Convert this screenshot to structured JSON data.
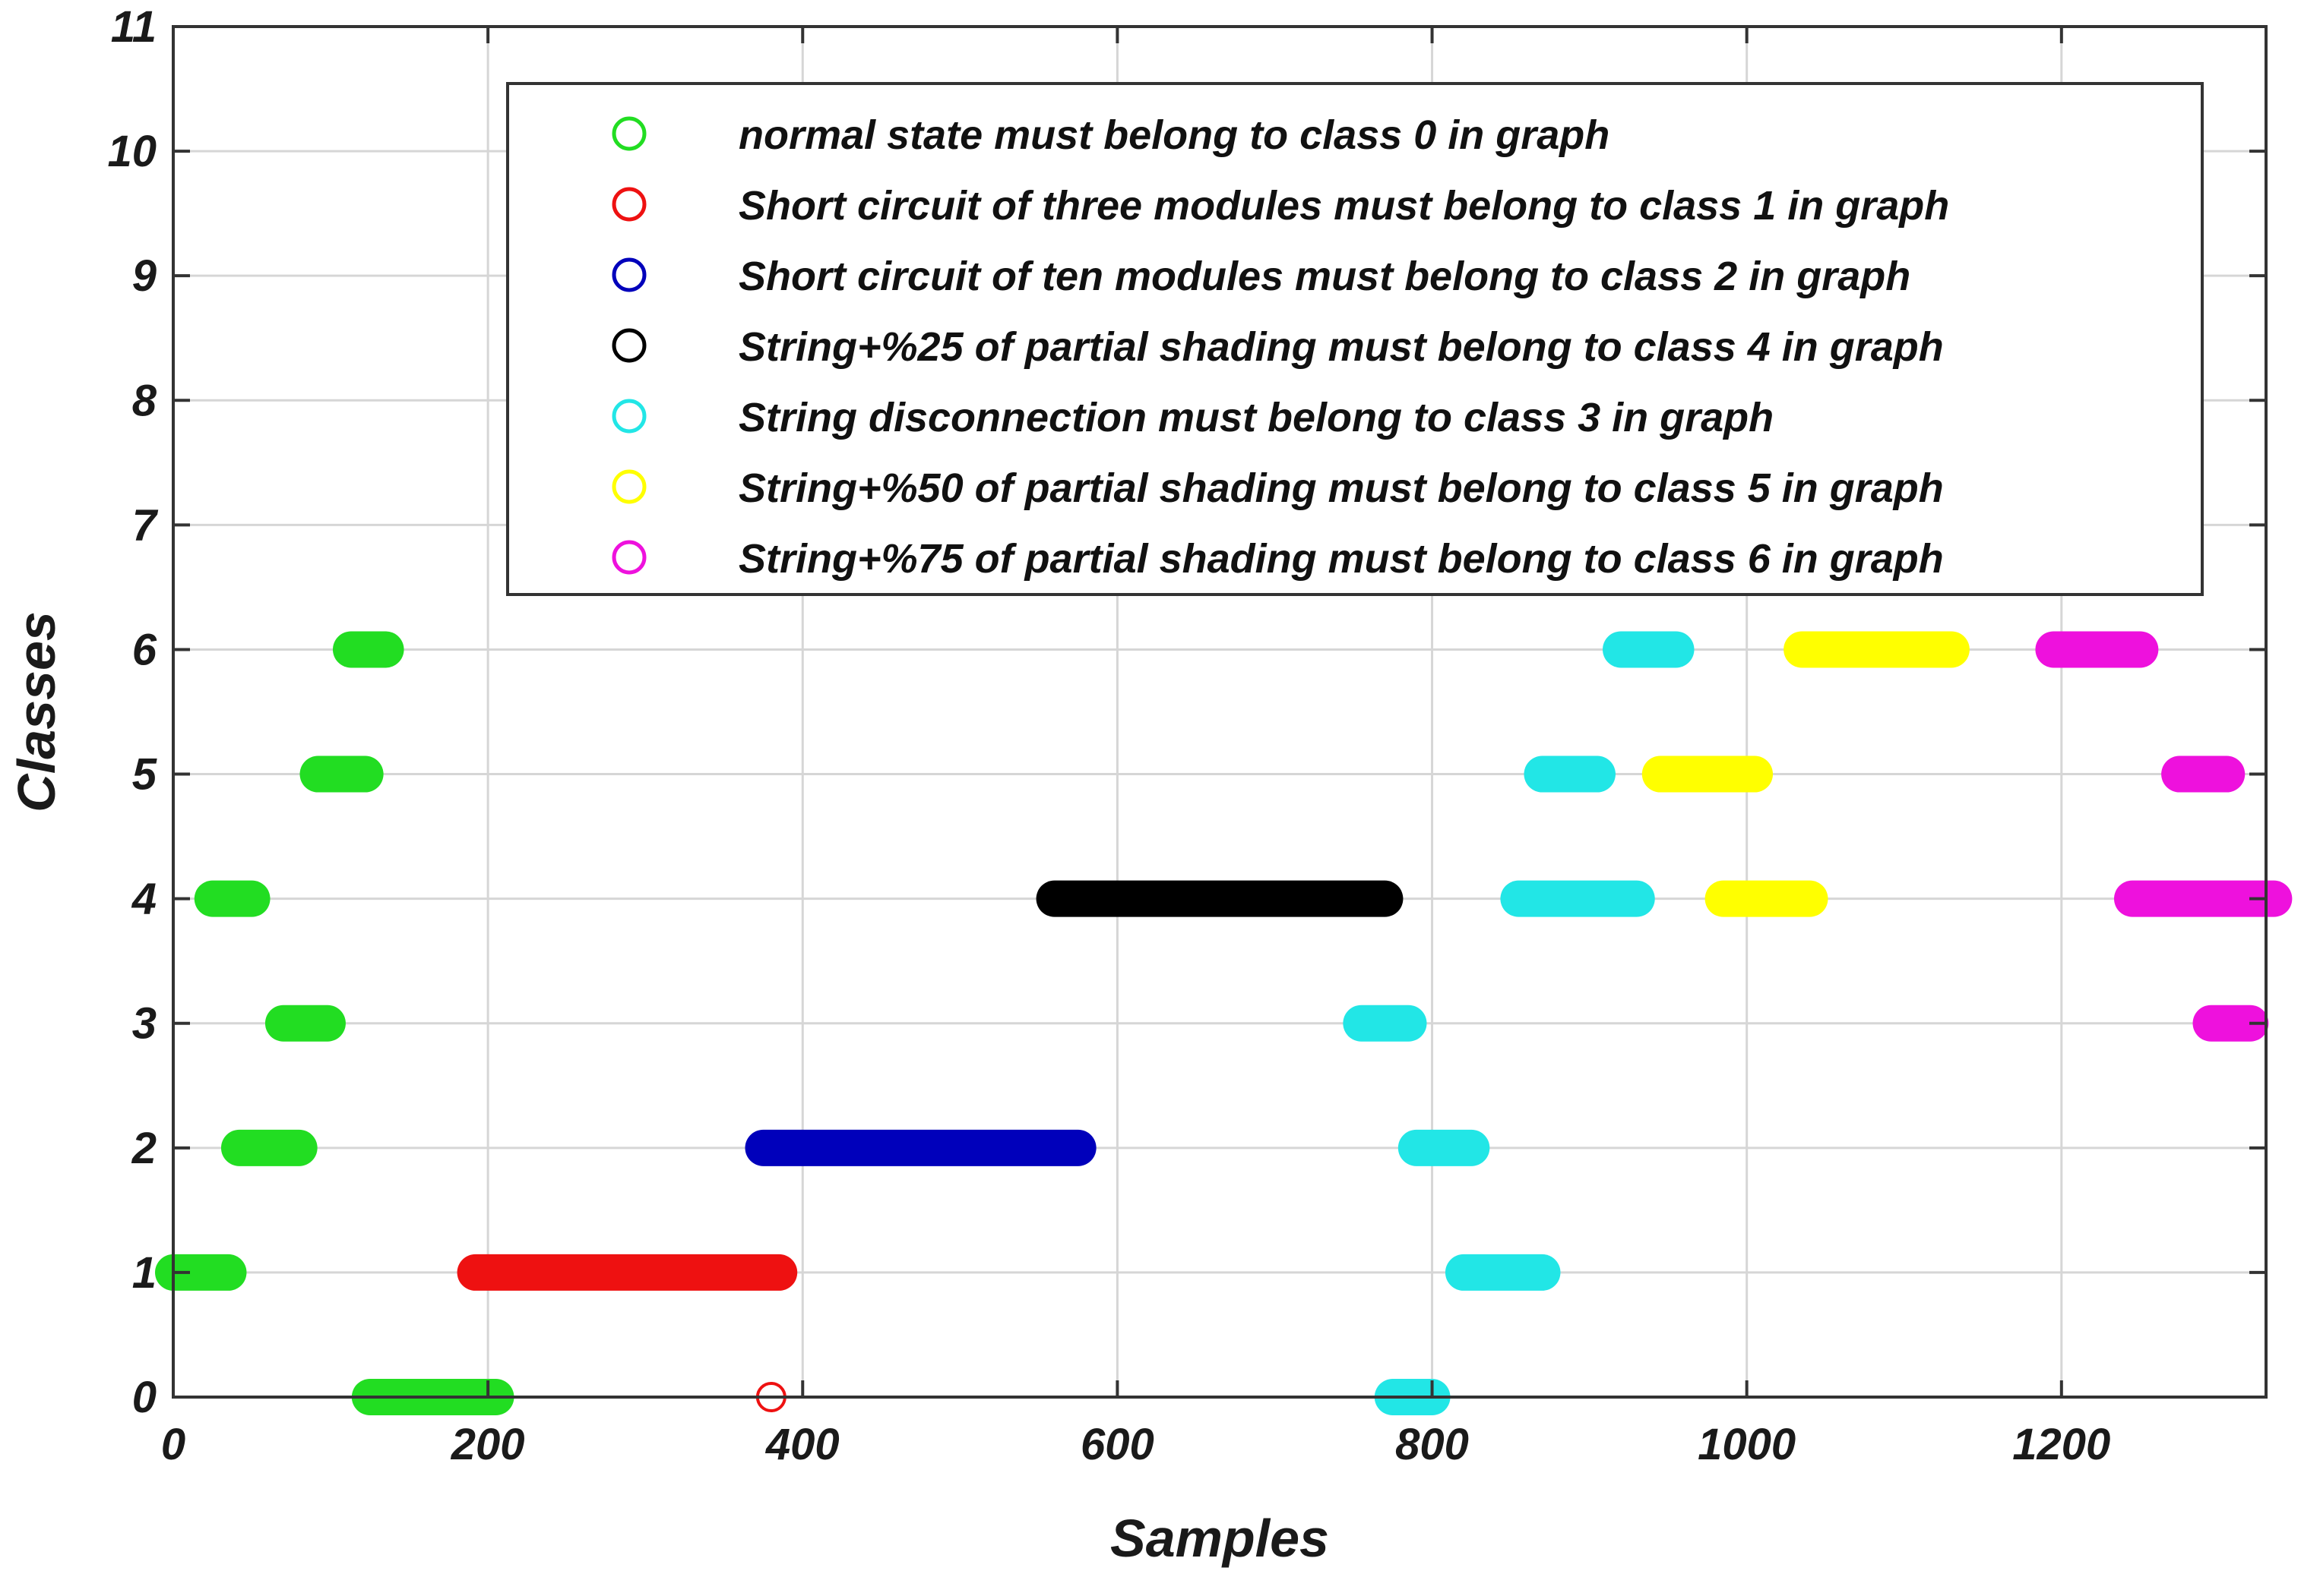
{
  "chart_data": {
    "type": "scatter",
    "xlabel": "Samples",
    "ylabel": "Classes",
    "xlim": [
      0,
      1330
    ],
    "ylim": [
      0,
      11
    ],
    "xticks": [
      0,
      200,
      400,
      600,
      800,
      1000,
      1200
    ],
    "yticks": [
      0,
      1,
      2,
      3,
      4,
      5,
      6,
      7,
      8,
      9,
      10,
      11
    ],
    "grid": true,
    "legend_position": "top-right",
    "series": [
      {
        "name": "normal state must belong to class 0 in graph",
        "color": "#22dd22",
        "segments": [
          {
            "y": 1,
            "x_start": 0,
            "x_end": 35
          },
          {
            "y": 4,
            "x_start": 25,
            "x_end": 50
          },
          {
            "y": 2,
            "x_start": 42,
            "x_end": 80
          },
          {
            "y": 3,
            "x_start": 70,
            "x_end": 98
          },
          {
            "y": 5,
            "x_start": 92,
            "x_end": 122
          },
          {
            "y": 6,
            "x_start": 113,
            "x_end": 135
          },
          {
            "y": 0,
            "x_start": 125,
            "x_end": 205
          }
        ]
      },
      {
        "name": "Short circuit of three modules must belong to class 1 in graph",
        "color": "#ee1111",
        "segments": [
          {
            "y": 1,
            "x_start": 192,
            "x_end": 385
          }
        ],
        "points": [
          {
            "x": 380,
            "y": 0
          }
        ]
      },
      {
        "name": "Short circuit of ten modules must belong to class 2 in graph",
        "color": "#0000bb",
        "segments": [
          {
            "y": 2,
            "x_start": 375,
            "x_end": 575
          }
        ]
      },
      {
        "name": "String+%25 of partial shading must belong to class 4 in graph",
        "color": "#000000",
        "segments": [
          {
            "y": 4,
            "x_start": 560,
            "x_end": 770
          }
        ]
      },
      {
        "name": "String disconnection must belong to class 3 in graph",
        "color": "#22e6e6",
        "segments": [
          {
            "y": 0,
            "x_start": 775,
            "x_end": 800
          },
          {
            "y": 3,
            "x_start": 755,
            "x_end": 785
          },
          {
            "y": 2,
            "x_start": 790,
            "x_end": 825
          },
          {
            "y": 1,
            "x_start": 820,
            "x_end": 870
          },
          {
            "y": 4,
            "x_start": 855,
            "x_end": 930
          },
          {
            "y": 5,
            "x_start": 870,
            "x_end": 905
          },
          {
            "y": 6,
            "x_start": 920,
            "x_end": 955
          }
        ]
      },
      {
        "name": "String+%50 of partial shading must belong to class 5 in graph",
        "color": "#ffff00",
        "segments": [
          {
            "y": 5,
            "x_start": 945,
            "x_end": 1005
          },
          {
            "y": 4,
            "x_start": 985,
            "x_end": 1040
          },
          {
            "y": 6,
            "x_start": 1035,
            "x_end": 1130
          }
        ]
      },
      {
        "name": "String+%75 of partial shading must belong to class 6 in graph",
        "color": "#ee11dd",
        "segments": [
          {
            "y": 6,
            "x_start": 1195,
            "x_end": 1250
          },
          {
            "y": 4,
            "x_start": 1245,
            "x_end": 1335
          },
          {
            "y": 5,
            "x_start": 1275,
            "x_end": 1305
          },
          {
            "y": 3,
            "x_start": 1295,
            "x_end": 1320
          }
        ]
      }
    ]
  }
}
